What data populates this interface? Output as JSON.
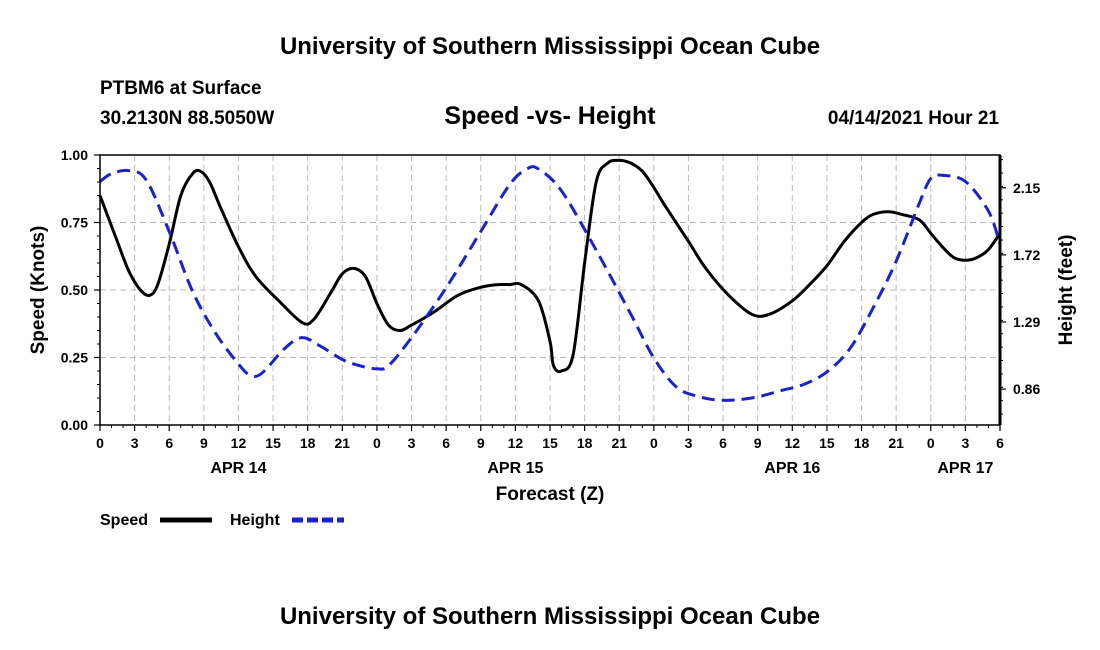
{
  "header": {
    "title": "University of Southern Mississippi Ocean Cube",
    "station": "PTBM6 at Surface",
    "coords": "30.2130N  88.5050W",
    "date": "04/14/2021 Hour 21"
  },
  "footer": {
    "title": "University of Southern Mississippi Ocean Cube"
  },
  "colors": {
    "speed": "#000000",
    "height": "#1a22c8",
    "grid": "#bbbbbb"
  },
  "chart_data": {
    "type": "line",
    "title": "Speed -vs- Height",
    "xlabel": "Forecast (Z)",
    "ylabel": "Speed (Knots)",
    "y2label": "Height (feet)",
    "x_unit": "hours since APR 14 00Z",
    "xlim": [
      0,
      78
    ],
    "ylim": [
      0,
      1.0
    ],
    "y2lim": [
      0.63,
      2.36
    ],
    "x_ticks": [
      0,
      3,
      6,
      9,
      12,
      15,
      18,
      21,
      24,
      27,
      30,
      33,
      36,
      39,
      42,
      45,
      48,
      51,
      54,
      57,
      60,
      63,
      66,
      69,
      72,
      75,
      78
    ],
    "x_tick_labels": [
      "0",
      "3",
      "6",
      "9",
      "12",
      "15",
      "18",
      "21",
      "0",
      "3",
      "6",
      "9",
      "12",
      "15",
      "18",
      "21",
      "0",
      "3",
      "6",
      "9",
      "12",
      "15",
      "18",
      "21",
      "0",
      "3",
      "6"
    ],
    "day_labels": [
      {
        "x": 12,
        "label": "APR 14"
      },
      {
        "x": 36,
        "label": "APR 15"
      },
      {
        "x": 60,
        "label": "APR 16"
      },
      {
        "x": 75,
        "label": "APR 17"
      }
    ],
    "y_ticks": [
      0,
      0.25,
      0.5,
      0.75,
      1.0
    ],
    "y_tick_labels": [
      "0.00",
      "0.25",
      "0.50",
      "0.75",
      "1.00"
    ],
    "y2_ticks": [
      0.86,
      1.29,
      1.72,
      2.15
    ],
    "y2_tick_labels": [
      "0.86",
      "1.29",
      "1.72",
      "2.15"
    ],
    "grid": true,
    "series": [
      {
        "name": "Speed",
        "axis": "left",
        "style": "solid",
        "x": [
          0,
          1.5,
          2.5,
          3.5,
          4.3,
          5,
          6,
          7,
          8,
          8.7,
          9.5,
          10.5,
          12,
          13.5,
          15.5,
          17.5,
          18.5,
          20,
          21,
          22,
          23,
          24,
          25,
          26,
          27,
          29,
          31,
          33,
          34.5,
          35.5,
          36.5,
          38,
          39,
          39.3,
          40,
          41,
          42,
          43,
          44,
          45,
          46,
          47,
          48,
          49,
          51,
          52.5,
          54.5,
          56.5,
          58,
          60,
          61.5,
          63,
          64.5,
          66,
          67,
          68.3,
          69.5,
          71,
          72,
          73,
          74,
          75,
          76,
          77,
          78
        ],
        "values": [
          0.85,
          0.68,
          0.57,
          0.5,
          0.48,
          0.52,
          0.67,
          0.85,
          0.93,
          0.94,
          0.9,
          0.8,
          0.66,
          0.55,
          0.46,
          0.38,
          0.39,
          0.49,
          0.56,
          0.58,
          0.55,
          0.45,
          0.37,
          0.35,
          0.37,
          0.42,
          0.48,
          0.51,
          0.52,
          0.52,
          0.52,
          0.46,
          0.31,
          0.22,
          0.2,
          0.26,
          0.6,
          0.9,
          0.97,
          0.98,
          0.97,
          0.94,
          0.88,
          0.81,
          0.68,
          0.58,
          0.48,
          0.41,
          0.41,
          0.46,
          0.52,
          0.59,
          0.68,
          0.75,
          0.78,
          0.79,
          0.78,
          0.76,
          0.71,
          0.66,
          0.62,
          0.61,
          0.62,
          0.65,
          0.71
        ]
      },
      {
        "name": "Height",
        "axis": "right",
        "style": "dashed",
        "x": [
          0,
          1,
          2.5,
          4,
          6,
          8,
          10,
          12,
          13,
          14,
          16,
          17.5,
          19,
          21,
          22.5,
          24,
          25,
          27,
          30,
          33,
          35.5,
          37,
          38,
          40,
          43,
          46,
          48,
          50,
          52,
          53.5,
          55,
          57,
          59,
          61,
          63,
          65,
          67,
          69,
          71,
          72,
          73,
          75,
          77,
          78
        ],
        "values": [
          2.19,
          2.24,
          2.26,
          2.2,
          1.87,
          1.49,
          1.22,
          1.02,
          0.95,
          0.96,
          1.12,
          1.19,
          1.14,
          1.05,
          1.01,
          0.99,
          1.01,
          1.19,
          1.51,
          1.87,
          2.17,
          2.27,
          2.27,
          2.13,
          1.75,
          1.34,
          1.06,
          0.87,
          0.81,
          0.79,
          0.79,
          0.81,
          0.85,
          0.89,
          0.97,
          1.12,
          1.38,
          1.68,
          2.05,
          2.21,
          2.23,
          2.19,
          2.0,
          1.79
        ]
      }
    ],
    "legend": [
      {
        "label": "Speed",
        "style": "solid"
      },
      {
        "label": "Height",
        "style": "dashed"
      }
    ]
  }
}
